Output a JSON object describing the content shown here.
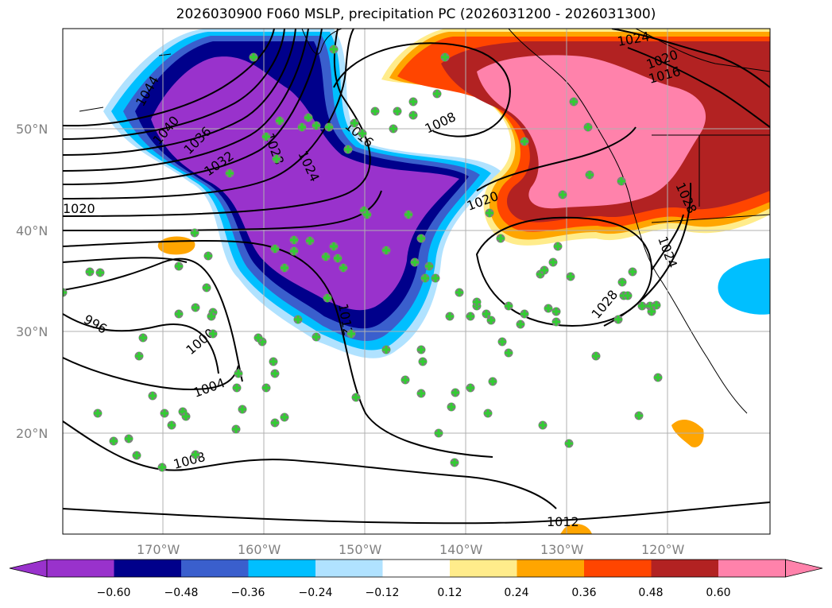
{
  "title": "2026030900 F060 MSLP, precipitation PC (2026031200 - 2026031300)",
  "axes": {
    "lat_labels": [
      "50°N",
      "40°N",
      "30°N",
      "20°N"
    ],
    "lon_labels": [
      "170°W",
      "160°W",
      "150°W",
      "140°W",
      "130°W",
      "120°W"
    ],
    "gridlines": true
  },
  "isobar_labels": [
    "1044",
    "1040",
    "1036",
    "1032",
    "1028",
    "1024",
    "1016",
    "1012",
    "1008",
    "1020",
    "1024",
    "1020",
    "1016",
    "1028",
    "1024",
    "1028",
    "996",
    "1000",
    "1004",
    "1008",
    "1012",
    "1020"
  ],
  "colorbar": {
    "tick_labels": [
      "−0.60",
      "−0.48",
      "−0.36",
      "−0.24",
      "−0.12",
      "0.12",
      "0.24",
      "0.36",
      "0.48",
      "0.60"
    ],
    "colors": [
      "#9932cc",
      "#00008b",
      "#3a5fcd",
      "#00bfff",
      "#b0e2ff",
      "#ffffff",
      "#ffec8b",
      "#ffa500",
      "#ff4500",
      "#b22222",
      "#ff82ab"
    ],
    "extend": "both"
  },
  "colors": {
    "neg_strong": "#9932cc",
    "neg_dark": "#00008b",
    "neg_mid": "#3a5fcd",
    "neg_light": "#00bfff",
    "neg_pale": "#b0e2ff",
    "pos_pale": "#ffec8b",
    "pos_orange": "#ffa500",
    "pos_red": "#ff4500",
    "pos_dark": "#b22222",
    "pos_pink": "#ff82ab",
    "station_marker": "#32cd32"
  }
}
